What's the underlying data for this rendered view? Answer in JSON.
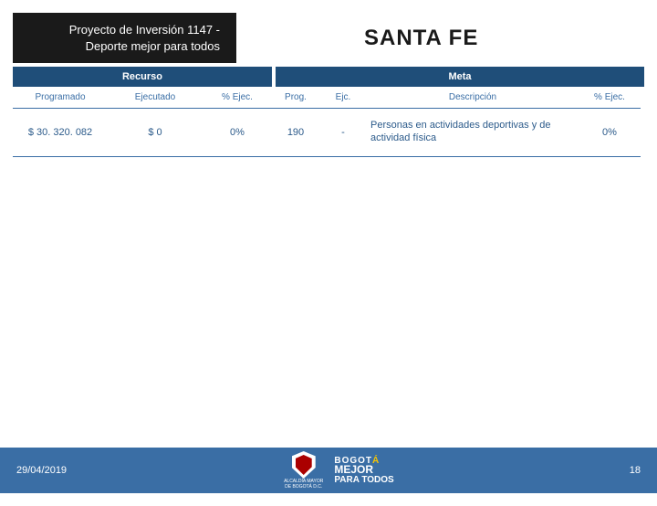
{
  "colors": {
    "band_bg": "#1f4e79",
    "subhead_text": "#3a6ea5",
    "cell_text": "#2b5a8a",
    "footer_bg": "#3a6ea5"
  },
  "header": {
    "project_line1": "Proyecto de Inversión 1147 -",
    "project_line2": "Deporte mejor para todos",
    "district": "SANTA FE"
  },
  "bands": {
    "recurso": "Recurso",
    "meta": "Meta"
  },
  "columns": {
    "programado": "Programado",
    "ejecutado": "Ejecutado",
    "pct_ejec_recurso": "% Ejec.",
    "prog": "Prog.",
    "ejc": "Ejc.",
    "descripcion": "Descripción",
    "pct_ejec_meta": "% Ejec."
  },
  "row": {
    "programado": "$ 30. 320. 082",
    "ejecutado": "$ 0",
    "pct_ejec_recurso": "0%",
    "prog": "190",
    "ejc": "-",
    "descripcion": "Personas en actividades deportivas y de actividad física",
    "pct_ejec_meta": "0%"
  },
  "footer": {
    "date": "29/04/2019",
    "page": "18",
    "logo_text_top": "ALCALDÍA MAYOR",
    "logo_text_bot": "DE BOGOTÁ D.C.",
    "slogan_l1": "BOGOTÁ",
    "slogan_l2": "MEJOR",
    "slogan_l3": "PARA TODOS"
  }
}
